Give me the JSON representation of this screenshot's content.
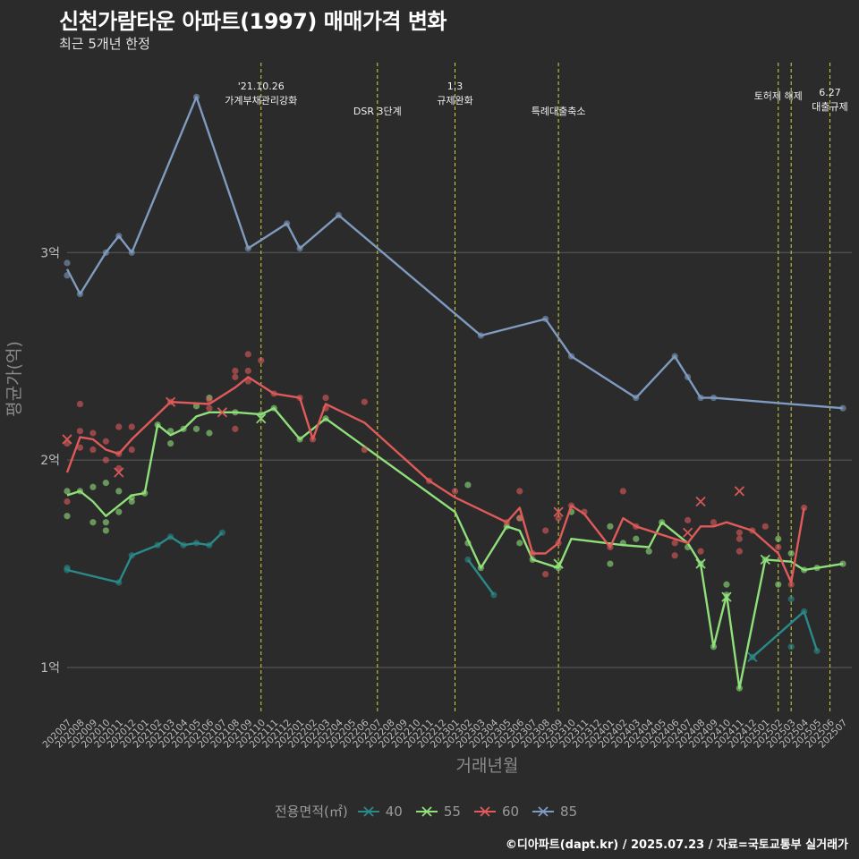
{
  "chart_data": {
    "type": "line",
    "title": "신천가람타운 아파트(1997) 매매가격 변화",
    "subtitle": "최근 5개년 한정",
    "xlabel": "거래년월",
    "ylabel": "평균가(억)",
    "caption": "©디아파트(dapt.kr) / 2025.07.23 / 자료=국토교통부 실거래가",
    "legend_title": "전용면적(㎡)",
    "ylim": [
      0.78,
      3.95
    ],
    "y_ticks": [
      {
        "v": 1,
        "label": "1억"
      },
      {
        "v": 2,
        "label": "2억"
      },
      {
        "v": 3,
        "label": "3억"
      }
    ],
    "x_months": [
      "202007",
      "202008",
      "202009",
      "202010",
      "202011",
      "202012",
      "202101",
      "202102",
      "202103",
      "202104",
      "202105",
      "202106",
      "202107",
      "202108",
      "202109",
      "202110",
      "202111",
      "202112",
      "202201",
      "202202",
      "202203",
      "202204",
      "202205",
      "202206",
      "202207",
      "202208",
      "202209",
      "202210",
      "202211",
      "202212",
      "202301",
      "202302",
      "202303",
      "202304",
      "202305",
      "202306",
      "202307",
      "202308",
      "202309",
      "202310",
      "202311",
      "202312",
      "202401",
      "202402",
      "202403",
      "202404",
      "202405",
      "202406",
      "202407",
      "202408",
      "202409",
      "202410",
      "202411",
      "202412",
      "202501",
      "202502",
      "202503",
      "202504",
      "202505",
      "202506",
      "202507"
    ],
    "annotations": [
      {
        "month": "202110",
        "lines": [
          "'21.10.26",
          "가계부채관리강화"
        ],
        "row": 1
      },
      {
        "month": "202207",
        "lines": [
          "DSR 3단계"
        ],
        "row": 2
      },
      {
        "month": "202301",
        "lines": [
          "1.3",
          "규제완화"
        ],
        "row": 1
      },
      {
        "month": "202309",
        "lines": [
          "특례대출축소"
        ],
        "row": 2
      },
      {
        "month": "202502",
        "lines": [
          "토허제 해제"
        ],
        "row": 0
      },
      {
        "month": "202503",
        "lines": [],
        "row": 0
      },
      {
        "month": "202506",
        "lines": [
          "6.27",
          "대출규제"
        ],
        "row": 3
      }
    ],
    "series": [
      {
        "name": "40",
        "color": "#2a8a8a",
        "line": [
          [
            0,
            1.47
          ],
          [
            4,
            1.41
          ],
          [
            5,
            1.54
          ],
          [
            7,
            1.59
          ],
          [
            8,
            1.63
          ],
          [
            9,
            1.59
          ],
          [
            10,
            1.6
          ],
          [
            11,
            1.59
          ],
          [
            12,
            1.65
          ]
        ],
        "line2": [
          [
            31,
            1.52
          ],
          [
            33,
            1.35
          ]
        ],
        "line3": [
          [
            53,
            1.05
          ],
          [
            57,
            1.27
          ],
          [
            58,
            1.08
          ]
        ],
        "points": [
          [
            0,
            1.48
          ],
          [
            0,
            1.47
          ],
          [
            4,
            1.41
          ],
          [
            5,
            1.54
          ],
          [
            7,
            1.59
          ],
          [
            8,
            1.63
          ],
          [
            9,
            1.59
          ],
          [
            10,
            1.6
          ],
          [
            11,
            1.59
          ],
          [
            12,
            1.65
          ],
          [
            31,
            1.52
          ],
          [
            33,
            1.35
          ],
          [
            53,
            1.05
          ],
          [
            56,
            1.33
          ],
          [
            56,
            1.1
          ],
          [
            57,
            1.27
          ],
          [
            58,
            1.08
          ]
        ],
        "crosses": [
          [
            53,
            1.05
          ]
        ]
      },
      {
        "name": "55",
        "color": "#8fe07a",
        "line": [
          [
            0,
            1.83
          ],
          [
            1,
            1.85
          ],
          [
            2,
            1.8
          ],
          [
            3,
            1.73
          ],
          [
            4,
            1.78
          ],
          [
            5,
            1.83
          ],
          [
            6,
            1.84
          ],
          [
            7,
            2.17
          ],
          [
            8,
            2.12
          ],
          [
            9,
            2.15
          ],
          [
            10,
            2.21
          ],
          [
            11,
            2.23
          ],
          [
            13,
            2.23
          ],
          [
            15,
            2.22
          ],
          [
            16,
            2.25
          ],
          [
            18,
            2.1
          ],
          [
            20,
            2.2
          ],
          [
            30,
            1.75
          ],
          [
            32,
            1.48
          ],
          [
            34,
            1.68
          ],
          [
            35,
            1.66
          ],
          [
            36,
            1.52
          ],
          [
            38,
            1.48
          ],
          [
            39,
            1.62
          ],
          [
            43,
            1.59
          ],
          [
            45,
            1.58
          ],
          [
            46,
            1.7
          ],
          [
            48,
            1.6
          ],
          [
            49,
            1.5
          ],
          [
            50,
            1.1
          ],
          [
            51,
            1.35
          ],
          [
            52,
            0.9
          ],
          [
            54,
            1.52
          ],
          [
            56,
            1.51
          ],
          [
            57,
            1.47
          ],
          [
            58,
            1.48
          ],
          [
            60,
            1.5
          ]
        ],
        "points": [
          [
            0,
            1.85
          ],
          [
            0,
            1.73
          ],
          [
            1,
            1.85
          ],
          [
            2,
            1.87
          ],
          [
            2,
            1.7
          ],
          [
            3,
            1.7
          ],
          [
            3,
            1.66
          ],
          [
            3,
            1.89
          ],
          [
            4,
            1.85
          ],
          [
            4,
            1.75
          ],
          [
            5,
            1.82
          ],
          [
            5,
            1.8
          ],
          [
            6,
            1.84
          ],
          [
            7,
            2.17
          ],
          [
            8,
            2.14
          ],
          [
            8,
            2.08
          ],
          [
            9,
            2.15
          ],
          [
            10,
            2.26
          ],
          [
            10,
            2.15
          ],
          [
            11,
            2.3
          ],
          [
            11,
            2.13
          ],
          [
            13,
            2.23
          ],
          [
            15,
            2.22
          ],
          [
            16,
            2.25
          ],
          [
            18,
            2.1
          ],
          [
            20,
            2.2
          ],
          [
            31,
            1.88
          ],
          [
            31,
            1.6
          ],
          [
            32,
            1.48
          ],
          [
            34,
            1.68
          ],
          [
            35,
            1.72
          ],
          [
            35,
            1.6
          ],
          [
            36,
            1.52
          ],
          [
            38,
            1.48
          ],
          [
            39,
            1.75
          ],
          [
            42,
            1.68
          ],
          [
            42,
            1.5
          ],
          [
            43,
            1.6
          ],
          [
            44,
            1.62
          ],
          [
            45,
            1.56
          ],
          [
            46,
            1.7
          ],
          [
            48,
            1.58
          ],
          [
            49,
            1.5
          ],
          [
            50,
            1.1
          ],
          [
            51,
            1.4
          ],
          [
            51,
            1.35
          ],
          [
            52,
            0.9
          ],
          [
            54,
            1.52
          ],
          [
            55,
            1.62
          ],
          [
            55,
            1.4
          ],
          [
            56,
            1.55
          ],
          [
            57,
            1.47
          ],
          [
            58,
            1.48
          ],
          [
            60,
            1.5
          ]
        ],
        "crosses": [
          [
            15,
            2.2
          ],
          [
            38,
            1.5
          ],
          [
            49,
            1.5
          ],
          [
            51,
            1.34
          ],
          [
            54,
            1.52
          ]
        ]
      },
      {
        "name": "60",
        "color": "#e05a5a",
        "line": [
          [
            0,
            1.94
          ],
          [
            1,
            2.11
          ],
          [
            2,
            2.1
          ],
          [
            3,
            2.05
          ],
          [
            4,
            2.03
          ],
          [
            5,
            2.1
          ],
          [
            8,
            2.28
          ],
          [
            11,
            2.27
          ],
          [
            13,
            2.35
          ],
          [
            14,
            2.4
          ],
          [
            16,
            2.32
          ],
          [
            18,
            2.3
          ],
          [
            19,
            2.1
          ],
          [
            20,
            2.27
          ],
          [
            23,
            2.18
          ],
          [
            28,
            1.9
          ],
          [
            30,
            1.82
          ],
          [
            34,
            1.7
          ],
          [
            35,
            1.77
          ],
          [
            36,
            1.55
          ],
          [
            37,
            1.55
          ],
          [
            38,
            1.6
          ],
          [
            39,
            1.78
          ],
          [
            40,
            1.74
          ],
          [
            42,
            1.58
          ],
          [
            43,
            1.72
          ],
          [
            44,
            1.68
          ],
          [
            48,
            1.6
          ],
          [
            49,
            1.68
          ],
          [
            50,
            1.68
          ],
          [
            51,
            1.7
          ],
          [
            53,
            1.66
          ],
          [
            55,
            1.55
          ],
          [
            56,
            1.41
          ],
          [
            57,
            1.77
          ]
        ],
        "points": [
          [
            0,
            1.8
          ],
          [
            0,
            2.08
          ],
          [
            1,
            2.27
          ],
          [
            1,
            2.14
          ],
          [
            1,
            2.06
          ],
          [
            2,
            2.13
          ],
          [
            2,
            2.05
          ],
          [
            3,
            2.09
          ],
          [
            3,
            2.0
          ],
          [
            4,
            2.16
          ],
          [
            4,
            2.03
          ],
          [
            4,
            1.96
          ],
          [
            5,
            2.16
          ],
          [
            5,
            2.05
          ],
          [
            8,
            2.28
          ],
          [
            11,
            2.25
          ],
          [
            11,
            2.29
          ],
          [
            13,
            2.43
          ],
          [
            13,
            2.4
          ],
          [
            13,
            2.15
          ],
          [
            14,
            2.51
          ],
          [
            14,
            2.43
          ],
          [
            14,
            2.38
          ],
          [
            15,
            2.48
          ],
          [
            16,
            2.32
          ],
          [
            18,
            2.3
          ],
          [
            19,
            2.1
          ],
          [
            20,
            2.3
          ],
          [
            20,
            2.25
          ],
          [
            23,
            2.28
          ],
          [
            23,
            2.05
          ],
          [
            28,
            1.9
          ],
          [
            30,
            1.85
          ],
          [
            34,
            1.7
          ],
          [
            35,
            1.85
          ],
          [
            35,
            1.72
          ],
          [
            36,
            1.55
          ],
          [
            37,
            1.66
          ],
          [
            37,
            1.45
          ],
          [
            38,
            1.72
          ],
          [
            38,
            1.6
          ],
          [
            39,
            1.78
          ],
          [
            40,
            1.75
          ],
          [
            42,
            1.58
          ],
          [
            43,
            1.85
          ],
          [
            44,
            1.68
          ],
          [
            47,
            1.54
          ],
          [
            47,
            1.6
          ],
          [
            48,
            1.71
          ],
          [
            49,
            1.56
          ],
          [
            50,
            1.7
          ],
          [
            52,
            1.65
          ],
          [
            52,
            1.62
          ],
          [
            52,
            1.56
          ],
          [
            53,
            1.66
          ],
          [
            54,
            1.68
          ],
          [
            55,
            1.58
          ],
          [
            56,
            1.4
          ],
          [
            57,
            1.77
          ]
        ],
        "crosses": [
          [
            0,
            2.1
          ],
          [
            4,
            1.94
          ],
          [
            8,
            2.28
          ],
          [
            12,
            2.23
          ],
          [
            38,
            1.75
          ],
          [
            48,
            1.65
          ],
          [
            49,
            1.8
          ],
          [
            52,
            1.85
          ]
        ]
      },
      {
        "name": "85",
        "color": "#7f9bbf",
        "line": [
          [
            0,
            2.92
          ],
          [
            1,
            2.8
          ],
          [
            3,
            3.0
          ],
          [
            4,
            3.08
          ],
          [
            5,
            3.0
          ],
          [
            10,
            3.75
          ],
          [
            14,
            3.02
          ],
          [
            17,
            3.14
          ],
          [
            18,
            3.02
          ],
          [
            21,
            3.18
          ],
          [
            32,
            2.6
          ],
          [
            37,
            2.68
          ],
          [
            39,
            2.5
          ],
          [
            44,
            2.3
          ],
          [
            47,
            2.5
          ],
          [
            48,
            2.4
          ],
          [
            49,
            2.3
          ],
          [
            50,
            2.3
          ],
          [
            60,
            2.25
          ]
        ],
        "points": [
          [
            0,
            2.95
          ],
          [
            0,
            2.89
          ],
          [
            1,
            2.8
          ],
          [
            3,
            3.0
          ],
          [
            4,
            3.08
          ],
          [
            5,
            3.0
          ],
          [
            10,
            3.75
          ],
          [
            14,
            3.02
          ],
          [
            17,
            3.14
          ],
          [
            18,
            3.02
          ],
          [
            21,
            3.18
          ],
          [
            32,
            2.6
          ],
          [
            37,
            2.68
          ],
          [
            39,
            2.5
          ],
          [
            44,
            2.3
          ],
          [
            47,
            2.5
          ],
          [
            48,
            2.4
          ],
          [
            49,
            2.3
          ],
          [
            50,
            2.3
          ],
          [
            60,
            2.25
          ]
        ],
        "crosses": []
      }
    ]
  }
}
